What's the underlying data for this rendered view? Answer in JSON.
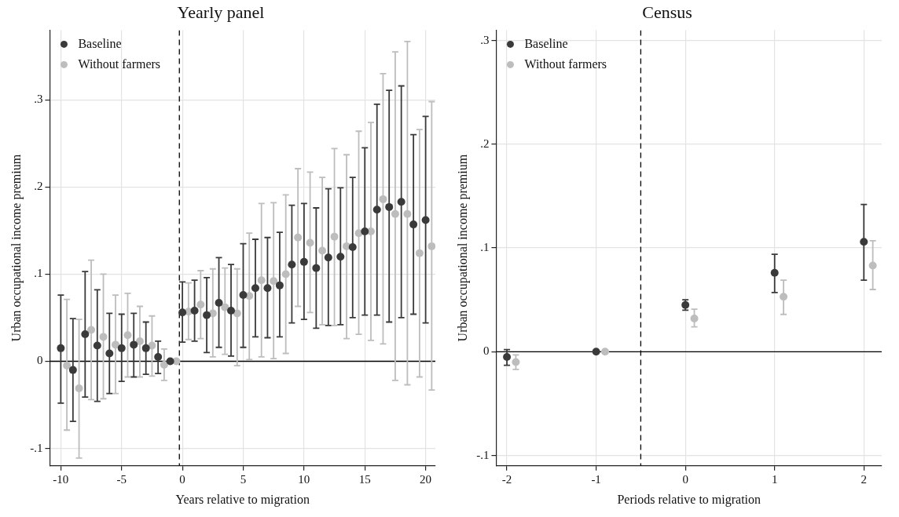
{
  "chart_data": [
    {
      "type": "scatter",
      "title": "Yearly panel",
      "xlabel": "Years relative to migration",
      "ylabel": "Urban occupational income premium",
      "xlim": [
        -10.9,
        20.8
      ],
      "xticks": [
        -10,
        -5,
        0,
        5,
        10,
        15,
        20
      ],
      "ylim": [
        -0.12,
        0.38
      ],
      "yticks": [
        {
          "value": -0.1,
          "label": "-.1"
        },
        0,
        {
          "value": 0.1,
          "label": ".1"
        },
        {
          "value": 0.2,
          "label": ".2"
        },
        {
          "value": 0.3,
          "label": ".3"
        }
      ],
      "grid": true,
      "legend": "top left",
      "marker": "circle",
      "ref_lines": [
        {
          "axis": "y",
          "value": 0,
          "color": "#000000",
          "line_style": "solid"
        },
        {
          "axis": "x",
          "value": -0.25,
          "color": "#000000",
          "line_style": "dashed"
        }
      ],
      "series": [
        {
          "name": "Baseline",
          "color": "#3a3a3a",
          "x": [
            -10,
            -9,
            -8,
            -7,
            -6,
            -5,
            -4,
            -3,
            -2,
            -1,
            0,
            1,
            2,
            3,
            4,
            5,
            6,
            7,
            8,
            9,
            10,
            11,
            12,
            13,
            14,
            15,
            16,
            17,
            18,
            19,
            20
          ],
          "values": [
            0.015,
            -0.01,
            0.031,
            0.018,
            0.009,
            0.015,
            0.019,
            0.015,
            0.005,
            0,
            0.056,
            0.058,
            0.053,
            0.067,
            0.058,
            0.076,
            0.084,
            0.084,
            0.087,
            0.111,
            0.114,
            0.107,
            0.119,
            0.12,
            0.131,
            0.149,
            0.174,
            0.177,
            0.183,
            0.157,
            0.162
          ],
          "errors": [
            [
              -0.048,
              0.076
            ],
            [
              -0.069,
              0.049
            ],
            [
              -0.041,
              0.103
            ],
            [
              -0.046,
              0.082
            ],
            [
              -0.037,
              0.055
            ],
            [
              -0.023,
              0.054
            ],
            [
              -0.018,
              0.055
            ],
            [
              -0.015,
              0.045
            ],
            [
              -0.014,
              0.023
            ],
            null,
            [
              0.022,
              0.091
            ],
            [
              0.023,
              0.093
            ],
            [
              0.01,
              0.096
            ],
            [
              0.016,
              0.119
            ],
            [
              0.006,
              0.111
            ],
            [
              0.016,
              0.135
            ],
            [
              0.028,
              0.14
            ],
            [
              0.027,
              0.142
            ],
            [
              0.028,
              0.148
            ],
            [
              0.044,
              0.179
            ],
            [
              0.048,
              0.181
            ],
            [
              0.038,
              0.176
            ],
            [
              0.041,
              0.198
            ],
            [
              0.042,
              0.199
            ],
            [
              0.05,
              0.211
            ],
            [
              0.053,
              0.245
            ],
            [
              0.053,
              0.295
            ],
            [
              0.045,
              0.311
            ],
            [
              0.05,
              0.316
            ],
            [
              0.054,
              0.26
            ],
            [
              0.044,
              0.281
            ]
          ]
        },
        {
          "name": "Without farmers",
          "color": "#bdbdbd",
          "x": [
            -9.5,
            -8.5,
            -7.5,
            -6.5,
            -5.5,
            -4.5,
            -3.5,
            -2.5,
            -1.5,
            -0.5,
            0.5,
            1.5,
            2.5,
            3.5,
            4.5,
            5.5,
            6.5,
            7.5,
            8.5,
            9.5,
            10.5,
            11.5,
            12.5,
            13.5,
            14.5,
            15.5,
            16.5,
            17.5,
            18.5,
            19.5,
            20.5
          ],
          "values": [
            -0.005,
            -0.031,
            0.036,
            0.028,
            0.019,
            0.03,
            0.023,
            0.018,
            -0.004,
            0,
            0.057,
            0.065,
            0.055,
            0.062,
            0.055,
            0.075,
            0.093,
            0.092,
            0.1,
            0.142,
            0.136,
            0.127,
            0.143,
            0.132,
            0.147,
            0.149,
            0.186,
            0.169,
            0.169,
            0.124,
            0.132
          ],
          "errors": [
            [
              -0.079,
              0.071
            ],
            [
              -0.111,
              0.048
            ],
            [
              -0.044,
              0.116
            ],
            [
              -0.043,
              0.1
            ],
            [
              -0.037,
              0.076
            ],
            [
              -0.018,
              0.078
            ],
            [
              -0.018,
              0.063
            ],
            [
              -0.017,
              0.052
            ],
            [
              -0.022,
              0.014
            ],
            null,
            [
              0.025,
              0.09
            ],
            [
              0.026,
              0.104
            ],
            [
              0.005,
              0.106
            ],
            [
              0.008,
              0.107
            ],
            [
              -0.005,
              0.106
            ],
            [
              0.002,
              0.147
            ],
            [
              0.005,
              0.181
            ],
            [
              0.003,
              0.182
            ],
            [
              0.009,
              0.191
            ],
            [
              0.063,
              0.221
            ],
            [
              0.056,
              0.217
            ],
            [
              0.042,
              0.211
            ],
            [
              0.041,
              0.244
            ],
            [
              0.026,
              0.237
            ],
            [
              0.031,
              0.264
            ],
            [
              0.024,
              0.274
            ],
            [
              0.02,
              0.33
            ],
            [
              -0.022,
              0.355
            ],
            [
              -0.027,
              0.367
            ],
            [
              -0.018,
              0.266
            ],
            [
              -0.033,
              0.298
            ]
          ]
        }
      ]
    },
    {
      "type": "scatter",
      "title": "Census",
      "xlabel": "Periods relative to migration",
      "ylabel": "Urban occupational income premium",
      "xlim": [
        -2.12,
        2.2
      ],
      "xticks": [
        -2,
        -1,
        0,
        1,
        2
      ],
      "ylim": [
        -0.11,
        0.31
      ],
      "yticks": [
        {
          "value": -0.1,
          "label": "-.1"
        },
        0,
        {
          "value": 0.1,
          "label": ".1"
        },
        {
          "value": 0.2,
          "label": ".2"
        },
        {
          "value": 0.3,
          "label": ".3"
        }
      ],
      "grid": true,
      "legend": "top left",
      "marker": "circle",
      "ref_lines": [
        {
          "axis": "y",
          "value": 0,
          "color": "#000000",
          "line_style": "solid"
        },
        {
          "axis": "x",
          "value": -0.5,
          "color": "#000000",
          "line_style": "dashed"
        }
      ],
      "series": [
        {
          "name": "Baseline",
          "color": "#3a3a3a",
          "x": [
            -2,
            -1,
            0,
            1,
            2
          ],
          "values": [
            -0.005,
            0,
            0.045,
            0.076,
            0.106
          ],
          "errors": [
            [
              -0.013,
              0.002
            ],
            null,
            [
              0.04,
              0.05
            ],
            [
              0.057,
              0.094
            ],
            [
              0.069,
              0.142
            ]
          ]
        },
        {
          "name": "Without farmers",
          "color": "#bdbdbd",
          "x": [
            -1.9,
            -0.9,
            0.1,
            1.1,
            2.1
          ],
          "values": [
            -0.01,
            0,
            0.032,
            0.053,
            0.083
          ],
          "errors": [
            [
              -0.017,
              -0.003
            ],
            null,
            [
              0.024,
              0.041
            ],
            [
              0.036,
              0.069
            ],
            [
              0.06,
              0.107
            ]
          ]
        }
      ]
    }
  ]
}
